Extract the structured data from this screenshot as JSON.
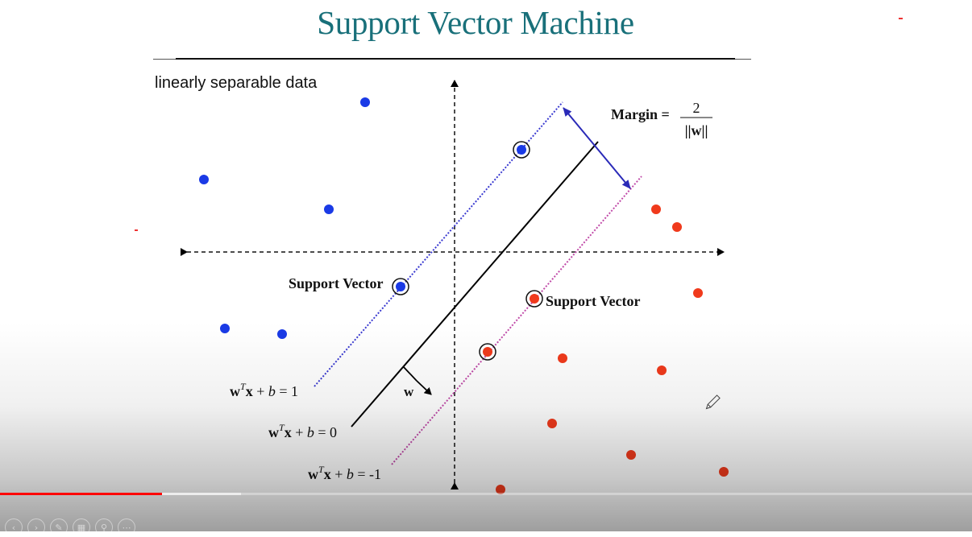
{
  "slide": {
    "title": "Support Vector Machine",
    "subtitle": "linearly separable data",
    "margin_label": "Margin =",
    "margin_numerator": "2",
    "margin_denominator": "||w||",
    "support_vector_label_left": "Support Vector",
    "support_vector_label_right": "Support Vector",
    "weight_label": "w",
    "eq_plus_one": {
      "w": "w",
      "sup": "T",
      "x": "x",
      "rest": " + ",
      "b": "b",
      "end": " = 1"
    },
    "eq_zero": {
      "w": "w",
      "sup": "T",
      "x": "x",
      "rest": " + ",
      "b": "b",
      "end": " = 0"
    },
    "eq_minus_one": {
      "w": "w",
      "sup": "T",
      "x": "x",
      "rest": " + ",
      "b": "b",
      "end": " = -1"
    }
  },
  "colors": {
    "title": "#19707a",
    "class_blue": "#1a3ae6",
    "class_red": "#f03a1c",
    "plus_margin": "#3a3ad0",
    "minus_margin": "#c04aa8",
    "arrow": "#2a2ab8"
  },
  "player": {
    "progress_fraction": 0.167,
    "buffered_fraction": 0.248,
    "controls": [
      "prev-icon",
      "next-icon",
      "pen-icon",
      "slides-icon",
      "zoom-icon",
      "more-icon"
    ]
  }
}
